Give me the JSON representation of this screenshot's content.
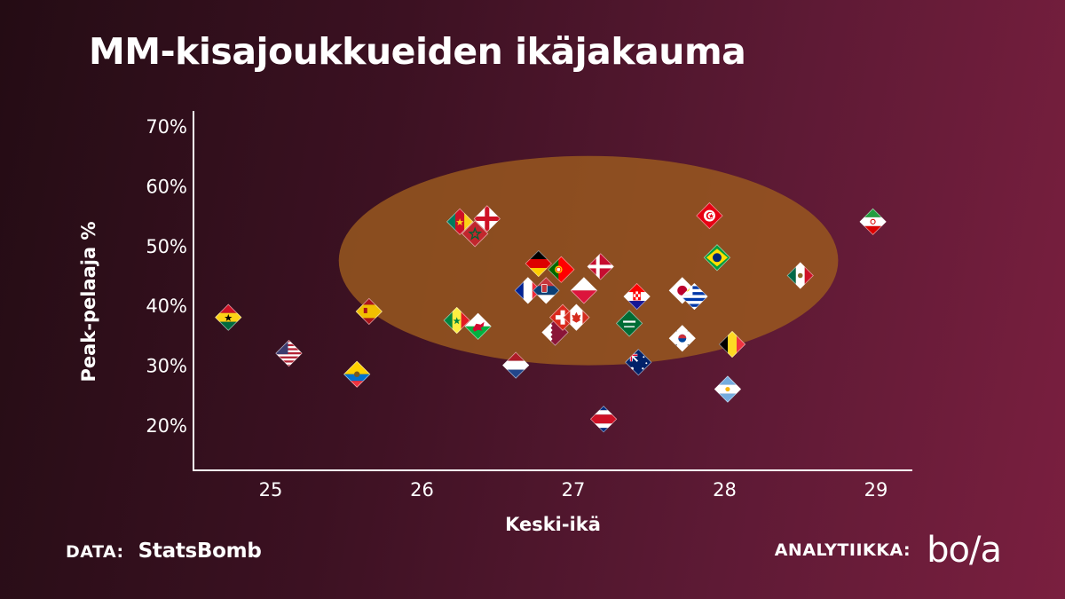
{
  "title": "MM-kisajoukkueiden ikäjakauma",
  "footer": {
    "data_label": "DATA:",
    "data_source": "StatsBomb",
    "analytics_label": "ANALYTIIKKA:",
    "analytics_logo_text": "bo/a"
  },
  "colors": {
    "background_dark": "#240c14",
    "background_light": "#7a1f3f",
    "highlight_ellipse": "#9b5a1e",
    "axis": "#ffffff"
  },
  "chart_data": {
    "type": "scatter",
    "xlabel": "Keski-ikä",
    "ylabel": "Peak-pelaaja %",
    "xlim": [
      24.5,
      29.2
    ],
    "ylim": [
      15,
      74
    ],
    "x_ticks": [
      25,
      26,
      27,
      28,
      29
    ],
    "y_ticks": [
      20,
      30,
      40,
      50,
      60,
      70
    ],
    "y_tick_format": "percent",
    "grid": false,
    "legend": "none",
    "highlight": {
      "shape": "ellipse",
      "center": [
        27.1,
        47.5
      ],
      "radius_x": 1.65,
      "radius_y": 17.5
    },
    "points": [
      {
        "flag": "ghana",
        "x": 24.72,
        "y": 38
      },
      {
        "flag": "usa",
        "x": 25.12,
        "y": 32
      },
      {
        "flag": "ecuador",
        "x": 25.57,
        "y": 28.5
      },
      {
        "flag": "spain",
        "x": 25.65,
        "y": 39
      },
      {
        "flag": "cameroon",
        "x": 26.25,
        "y": 54
      },
      {
        "flag": "morocco",
        "x": 26.35,
        "y": 52
      },
      {
        "flag": "england",
        "x": 26.43,
        "y": 54.5
      },
      {
        "flag": "senegal",
        "x": 26.23,
        "y": 37.5
      },
      {
        "flag": "wales",
        "x": 26.37,
        "y": 36.5
      },
      {
        "flag": "netherlands",
        "x": 26.62,
        "y": 30
      },
      {
        "flag": "france",
        "x": 26.7,
        "y": 42.5
      },
      {
        "flag": "germany",
        "x": 26.77,
        "y": 47
      },
      {
        "flag": "serbia",
        "x": 26.82,
        "y": 42.5
      },
      {
        "flag": "portugal",
        "x": 26.92,
        "y": 46
      },
      {
        "flag": "qatar",
        "x": 26.88,
        "y": 35.5
      },
      {
        "flag": "switzerland",
        "x": 26.93,
        "y": 38
      },
      {
        "flag": "canada",
        "x": 27.02,
        "y": 38
      },
      {
        "flag": "poland",
        "x": 27.07,
        "y": 42.5
      },
      {
        "flag": "denmark",
        "x": 27.18,
        "y": 46.5
      },
      {
        "flag": "costa-rica",
        "x": 27.2,
        "y": 21
      },
      {
        "flag": "croatia",
        "x": 27.42,
        "y": 41.5
      },
      {
        "flag": "saudi-arabia",
        "x": 27.37,
        "y": 37
      },
      {
        "flag": "australia",
        "x": 27.43,
        "y": 30.5
      },
      {
        "flag": "japan",
        "x": 27.72,
        "y": 42.5
      },
      {
        "flag": "uruguay",
        "x": 27.8,
        "y": 41.5
      },
      {
        "flag": "south-korea",
        "x": 27.72,
        "y": 34.5
      },
      {
        "flag": "tunisia",
        "x": 27.9,
        "y": 55
      },
      {
        "flag": "brazil",
        "x": 27.95,
        "y": 48
      },
      {
        "flag": "belgium",
        "x": 28.05,
        "y": 33.5
      },
      {
        "flag": "argentina",
        "x": 28.02,
        "y": 26
      },
      {
        "flag": "mexico",
        "x": 28.5,
        "y": 45
      },
      {
        "flag": "iran",
        "x": 28.98,
        "y": 54
      }
    ]
  }
}
